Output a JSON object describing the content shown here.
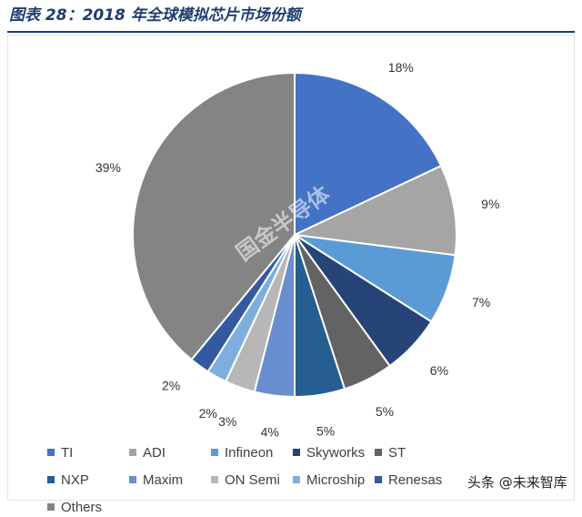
{
  "header": {
    "title": "图表 28：2018 年全球模拟芯片市场份额"
  },
  "watermark": "国金半导体",
  "footer": {
    "source_mark": "头条 @未来智库"
  },
  "chart_data": {
    "type": "pie",
    "title": "",
    "legend_position": "bottom",
    "slices": [
      {
        "name": "TI",
        "value": 18,
        "label": "18%",
        "color": "#4472c4"
      },
      {
        "name": "ADI",
        "value": 9,
        "label": "9%",
        "color": "#a5a5a5"
      },
      {
        "name": "Infineon",
        "value": 7,
        "label": "7%",
        "color": "#5b9bd5"
      },
      {
        "name": "Skyworks",
        "value": 6,
        "label": "6%",
        "color": "#264478"
      },
      {
        "name": "ST",
        "value": 5,
        "label": "5%",
        "color": "#636363"
      },
      {
        "name": "NXP",
        "value": 5,
        "label": "5%",
        "color": "#255e91"
      },
      {
        "name": "Maxim",
        "value": 4,
        "label": "4%",
        "color": "#698ed0"
      },
      {
        "name": "ON Semi",
        "value": 3,
        "label": "3%",
        "color": "#b7b7b7"
      },
      {
        "name": "Microship",
        "value": 2,
        "label": "2%",
        "color": "#7cafdd"
      },
      {
        "name": "Renesas",
        "value": 2,
        "label": "2%",
        "color": "#335aa1"
      },
      {
        "name": "Others",
        "value": 39,
        "label": "39%",
        "color": "#848484"
      }
    ]
  }
}
